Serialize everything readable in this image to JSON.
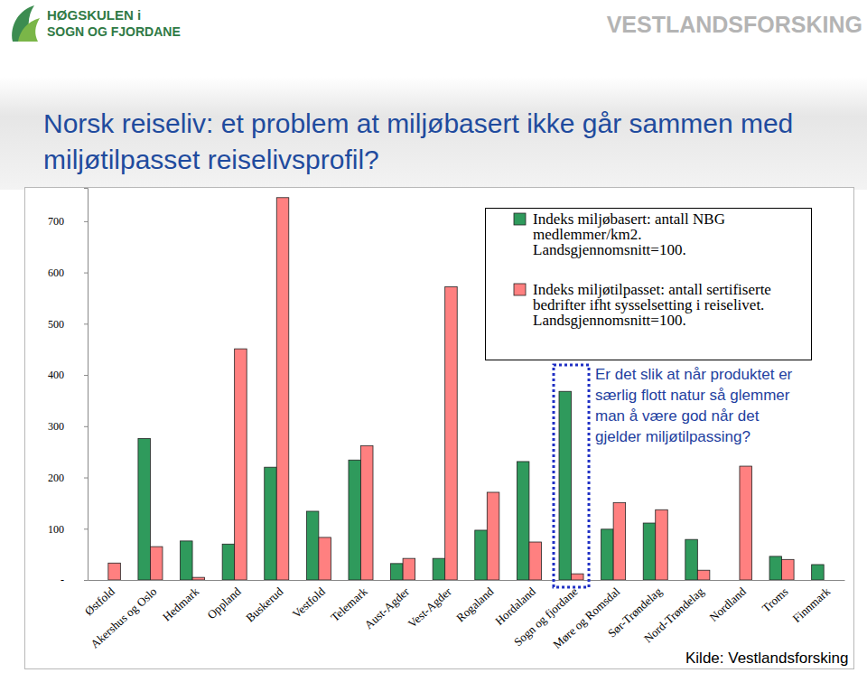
{
  "header": {
    "left_logo": [
      "HØGSKULEN i",
      "SOGN OG FJORDANE"
    ],
    "right_logo": "VESTLANDSFORSKING"
  },
  "chart_data": {
    "type": "bar",
    "title": "Norsk reiseliv: et problem at miljøbasert ikke går sammen med miljøtilpasset reiselivsprofil?",
    "categories": [
      "Østfold",
      "Akershus og Oslo",
      "Hedmark",
      "Oppland",
      "Buskerud",
      "Vestfold",
      "Telemark",
      "Aust-Agder",
      "Vest-Agder",
      "Rogaland",
      "Hordaland",
      "Sogn og fjordane",
      "Møre og Romsdal",
      "Sør-Trøndelag",
      "Nord-Trøndelag",
      "Nordland",
      "Troms",
      "Finnmark"
    ],
    "series": [
      {
        "name": "Indeks miljøbasert: antall NBG medlemmer/km2. Landsgjennomsnitt=100.",
        "color": "#2f9a5c",
        "values": [
          null,
          276,
          76,
          70,
          220,
          134,
          234,
          32,
          42,
          97,
          231,
          368,
          99,
          111,
          79,
          null,
          46,
          30
        ]
      },
      {
        "name": "Indeks miljøtilpasset: antall sertifiserte bedrifter ifht sysselsetting i reiselivet. Landsgjennomsnitt=100.",
        "color": "#ff8080",
        "values": [
          33,
          65,
          5,
          451,
          746,
          83,
          262,
          42,
          572,
          171,
          74,
          12,
          151,
          137,
          19,
          222,
          40,
          null
        ]
      }
    ],
    "ylim": [
      0,
      765
    ],
    "yticks": [
      {
        "value": 0,
        "label": "-"
      },
      100,
      200,
      300,
      400,
      500,
      600,
      700
    ],
    "grid": false,
    "legend": "upper right",
    "annotations": [
      "Er det slik at når produktet er",
      "særlig flott natur så glemmer",
      "man å være god når det",
      "gjelder miljøtilpassing?"
    ],
    "source": "Kilde: Vestlandsforsking"
  }
}
